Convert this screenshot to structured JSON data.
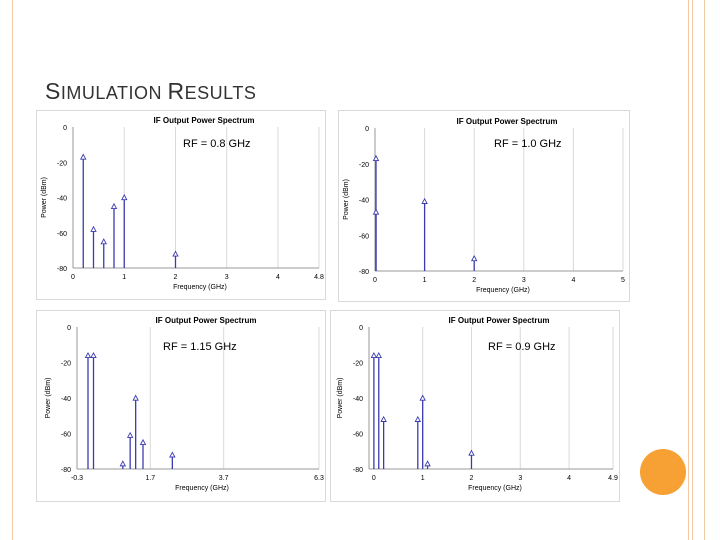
{
  "slide": {
    "title_first_big": "S",
    "title_rest_1": "IMULATION ",
    "title_second_big": "R",
    "title_rest_2": "ESULTS",
    "colors": {
      "accent_line": "#f3c9a4",
      "accent_circle": "#f7a034",
      "title": "#333333",
      "series": "#3b3bb0"
    }
  },
  "chart_data": [
    {
      "type": "bar",
      "title": "IF Output Power Spectrum",
      "xlabel": "Frequency (GHz)",
      "ylabel": "Power (dBm)",
      "annotation": "RF = 0.8 GHz",
      "xlim": [
        0,
        4.8
      ],
      "ylim": [
        -80,
        0
      ],
      "xticks": [
        0,
        1,
        2,
        3,
        4,
        4.8
      ],
      "xtick_labels": [
        "0",
        "1",
        "2",
        "3",
        "4",
        "4.8"
      ],
      "yticks": [
        0,
        -20,
        -40,
        -60,
        -80
      ],
      "ytick_labels": [
        "0",
        "-20",
        "-40",
        "-60",
        "-80"
      ],
      "points": [
        {
          "x": 0.2,
          "y": -17
        },
        {
          "x": 0.4,
          "y": -58
        },
        {
          "x": 0.6,
          "y": -65
        },
        {
          "x": 0.8,
          "y": -45
        },
        {
          "x": 1.0,
          "y": -40
        },
        {
          "x": 2.0,
          "y": -72
        }
      ]
    },
    {
      "type": "bar",
      "title": "IF Output Power Spectrum",
      "xlabel": "Frequency (GHz)",
      "ylabel": "Power (dBm)",
      "annotation": "RF = 1.0 GHz",
      "xlim": [
        0,
        5
      ],
      "ylim": [
        -80,
        0
      ],
      "xticks": [
        0,
        1,
        2,
        3,
        4,
        5
      ],
      "xtick_labels": [
        "0",
        "1",
        "2",
        "3",
        "4",
        "5"
      ],
      "yticks": [
        0,
        -20,
        -40,
        -60,
        -80
      ],
      "ytick_labels": [
        "0",
        "-20",
        "-40",
        "-60",
        "-80"
      ],
      "points": [
        {
          "x": 0.02,
          "y": -17
        },
        {
          "x": 0.02,
          "y": -47
        },
        {
          "x": 1.0,
          "y": -41
        },
        {
          "x": 2.0,
          "y": -73
        }
      ]
    },
    {
      "type": "bar",
      "title": "IF Output Power Spectrum",
      "xlabel": "Frequency (GHz)",
      "ylabel": "Power (dBm)",
      "annotation": "RF = 1.15 GHz",
      "xlim": [
        -0.3,
        6.3
      ],
      "ylim": [
        -80,
        0
      ],
      "xticks": [
        -0.3,
        1.7,
        3.7,
        6.3
      ],
      "xtick_labels": [
        "-0.3",
        "1.7",
        "3.7",
        "6.3"
      ],
      "yticks": [
        0,
        -20,
        -40,
        -60,
        -80
      ],
      "ytick_labels": [
        "0",
        "-20",
        "-40",
        "-60",
        "-80"
      ],
      "points": [
        {
          "x": 0.0,
          "y": -16
        },
        {
          "x": 0.15,
          "y": -16
        },
        {
          "x": 0.95,
          "y": -77
        },
        {
          "x": 1.15,
          "y": -61
        },
        {
          "x": 1.3,
          "y": -40
        },
        {
          "x": 1.5,
          "y": -65
        },
        {
          "x": 2.3,
          "y": -72
        }
      ]
    },
    {
      "type": "bar",
      "title": "IF Output Power Spectrum",
      "xlabel": "Frequency (GHz)",
      "ylabel": "Power (dBm)",
      "annotation": "RF = 0.9 GHz",
      "xlim": [
        -0.1,
        4.9
      ],
      "ylim": [
        -80,
        0
      ],
      "xticks": [
        0,
        1,
        2,
        3,
        4,
        4.9
      ],
      "xtick_labels": [
        "0",
        "1",
        "2",
        "3",
        "4",
        "4.9"
      ],
      "yticks": [
        0,
        -20,
        -40,
        -60,
        -80
      ],
      "ytick_labels": [
        "0",
        "-20",
        "-40",
        "-60",
        "-80"
      ],
      "points": [
        {
          "x": 0.0,
          "y": -16
        },
        {
          "x": 0.1,
          "y": -16
        },
        {
          "x": 0.2,
          "y": -52
        },
        {
          "x": 0.9,
          "y": -52
        },
        {
          "x": 1.0,
          "y": -40
        },
        {
          "x": 1.1,
          "y": -77
        },
        {
          "x": 2.0,
          "y": -71
        }
      ]
    }
  ]
}
